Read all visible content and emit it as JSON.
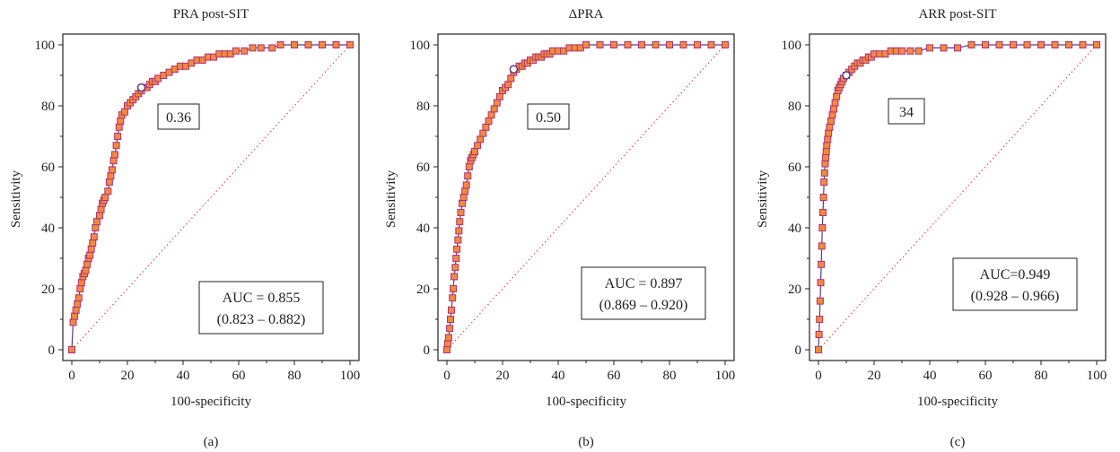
{
  "colors": {
    "marker_fill": "#f08a3c",
    "marker_edge": "#b0307a",
    "line": "#5a3a8c",
    "diagonal": "#e0323c",
    "cut_point_fill": "#ffffff"
  },
  "chart_data": [
    {
      "type": "line",
      "title": "PRA post-SIT",
      "xlabel": "100-specificity",
      "ylabel": "Sensitivity",
      "xlim": [
        0,
        100
      ],
      "ylim": [
        0,
        100
      ],
      "xticks": [
        0,
        20,
        40,
        60,
        80,
        100
      ],
      "yticks": [
        0,
        20,
        40,
        60,
        80,
        100
      ],
      "caption": "(a)",
      "cut_label": "0.36",
      "cut_point": [
        25,
        86
      ],
      "auc_line1": "AUC = 0.855",
      "auc_line2": "(0.823 – 0.882)",
      "series": [
        {
          "x": [
            0,
            0.5,
            1,
            1.5,
            2,
            2.5,
            3,
            3.5,
            4,
            4.5,
            5,
            5.5,
            6,
            6.5,
            7,
            7.5,
            8,
            8.5,
            9,
            10,
            10.5,
            11,
            11.5,
            12,
            13,
            13.5,
            14,
            14.5,
            15,
            15.5,
            16,
            16.5,
            17,
            17.5,
            18,
            19,
            20,
            21,
            22,
            23,
            24,
            25,
            26,
            27,
            28,
            29,
            30,
            31,
            33,
            35,
            37,
            39,
            41,
            43,
            45,
            47,
            49,
            51,
            53,
            55,
            57,
            59,
            62,
            65,
            68,
            72,
            75,
            80,
            85,
            90,
            95,
            100
          ],
          "y": [
            0,
            9,
            11,
            13,
            15,
            17,
            20,
            22,
            24,
            25,
            26,
            28,
            30,
            31,
            33,
            35,
            37,
            40,
            42,
            44,
            46,
            48,
            49,
            50,
            52,
            55,
            57,
            59,
            62,
            64,
            67,
            70,
            73,
            75,
            77,
            78,
            80,
            81,
            82,
            83,
            84,
            85,
            86,
            86,
            87,
            88,
            88,
            89,
            90,
            91,
            92,
            93,
            93,
            94,
            95,
            95,
            96,
            96,
            97,
            97,
            97,
            98,
            98,
            99,
            99,
            99,
            100,
            100,
            100,
            100,
            100,
            100
          ]
        }
      ]
    },
    {
      "type": "line",
      "title": "ΔPRA",
      "xlabel": "100-specificity",
      "ylabel": "Sensitivity",
      "xlim": [
        0,
        100
      ],
      "ylim": [
        0,
        100
      ],
      "xticks": [
        0,
        20,
        40,
        60,
        80,
        100
      ],
      "yticks": [
        0,
        20,
        40,
        60,
        80,
        100
      ],
      "caption": "(b)",
      "cut_label": "0.50",
      "cut_point": [
        24,
        92
      ],
      "auc_line1": "AUC = 0.897",
      "auc_line2": "(0.869 – 0.920)",
      "series": [
        {
          "x": [
            0,
            0.3,
            0.6,
            1,
            1.3,
            1.6,
            2,
            2.3,
            2.6,
            3,
            3.3,
            3.6,
            4,
            4.3,
            4.6,
            5,
            5.5,
            6,
            6.5,
            7,
            7.5,
            8,
            8.5,
            9,
            9.5,
            10,
            11,
            12,
            13,
            14,
            15,
            16,
            17,
            18,
            19,
            20,
            21,
            22,
            23,
            24,
            25,
            26,
            27,
            28,
            29,
            30,
            31,
            32,
            33,
            34,
            35,
            36,
            37,
            38,
            40,
            42,
            44,
            46,
            48,
            50,
            55,
            60,
            65,
            70,
            75,
            80,
            85,
            90,
            95,
            100
          ],
          "y": [
            0,
            2,
            4,
            7,
            10,
            13,
            17,
            20,
            24,
            27,
            30,
            33,
            36,
            39,
            42,
            45,
            48,
            50,
            52,
            54,
            57,
            60,
            62,
            63,
            64,
            65,
            67,
            69,
            71,
            73,
            75,
            77,
            79,
            81,
            83,
            85,
            86,
            87,
            89,
            91,
            92,
            93,
            93,
            94,
            94,
            95,
            95,
            96,
            96,
            96,
            97,
            97,
            97,
            98,
            98,
            98,
            99,
            99,
            99,
            100,
            100,
            100,
            100,
            100,
            100,
            100,
            100,
            100,
            100,
            100
          ]
        }
      ]
    },
    {
      "type": "line",
      "title": "ARR post-SIT",
      "xlabel": "100-specificity",
      "ylabel": "Sensitivity",
      "xlim": [
        0,
        100
      ],
      "ylim": [
        0,
        100
      ],
      "xticks": [
        0,
        20,
        40,
        60,
        80,
        100
      ],
      "yticks": [
        0,
        20,
        40,
        60,
        80,
        100
      ],
      "caption": "(c)",
      "cut_label": "34",
      "cut_point": [
        10,
        90
      ],
      "auc_line1": "AUC=0.949",
      "auc_line2": "(0.928 – 0.966)",
      "series": [
        {
          "x": [
            0,
            0.2,
            0.4,
            0.6,
            0.8,
            1,
            1.2,
            1.4,
            1.6,
            1.8,
            2,
            2.2,
            2.4,
            2.6,
            2.8,
            3,
            3.3,
            3.6,
            4,
            4.5,
            5,
            5.5,
            6,
            6.5,
            7,
            7.5,
            8,
            8.5,
            9,
            10,
            11,
            12,
            13,
            14,
            15,
            16,
            17,
            18,
            19,
            20,
            22,
            24,
            26,
            28,
            30,
            33,
            36,
            40,
            45,
            50,
            55,
            60,
            65,
            70,
            75,
            80,
            85,
            90,
            95,
            100
          ],
          "y": [
            0,
            5,
            10,
            16,
            22,
            28,
            34,
            40,
            45,
            50,
            55,
            58,
            61,
            63,
            65,
            67,
            69,
            71,
            73,
            75,
            77,
            79,
            81,
            83,
            85,
            86,
            87,
            88,
            89,
            90,
            91,
            92,
            93,
            94,
            94,
            95,
            95,
            96,
            96,
            97,
            97,
            97,
            98,
            98,
            98,
            98,
            98,
            99,
            99,
            99,
            100,
            100,
            100,
            100,
            100,
            100,
            100,
            100,
            100,
            100
          ]
        }
      ]
    }
  ]
}
